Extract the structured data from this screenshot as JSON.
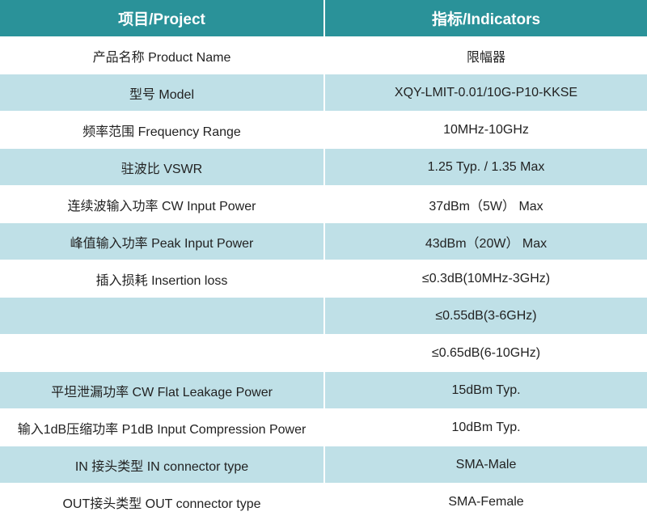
{
  "header": {
    "project": "项目/Project",
    "indicators": "指标/Indicators"
  },
  "rows": [
    {
      "project": "产品名称 Product Name",
      "indicator": "限幅器"
    },
    {
      "project": "型号 Model",
      "indicator": "XQY-LMIT-0.01/10G-P10-KKSE"
    },
    {
      "project": "频率范围 Frequency Range",
      "indicator": "10MHz-10GHz"
    },
    {
      "project": "驻波比 VSWR",
      "indicator": "1.25 Typ. / 1.35 Max"
    },
    {
      "project": "连续波输入功率 CW Input Power",
      "indicator": "37dBm（5W） Max"
    },
    {
      "project": "峰值输入功率 Peak Input Power",
      "indicator": "43dBm（20W） Max"
    },
    {
      "project": "插入损耗 Insertion loss",
      "indicator": "≤0.3dB(10MHz-3GHz)"
    },
    {
      "project": "",
      "indicator": "≤0.55dB(3-6GHz)"
    },
    {
      "project": "",
      "indicator": "≤0.65dB(6-10GHz)"
    },
    {
      "project": "平坦泄漏功率 CW Flat Leakage Power",
      "indicator": "15dBm Typ."
    },
    {
      "project": "输入1dB压缩功率 P1dB Input Compression Power",
      "indicator": "10dBm Typ."
    },
    {
      "project": "IN 接头类型 IN connector type",
      "indicator": "SMA-Male"
    },
    {
      "project": "OUT接头类型 OUT connector type",
      "indicator": "SMA-Female"
    }
  ]
}
